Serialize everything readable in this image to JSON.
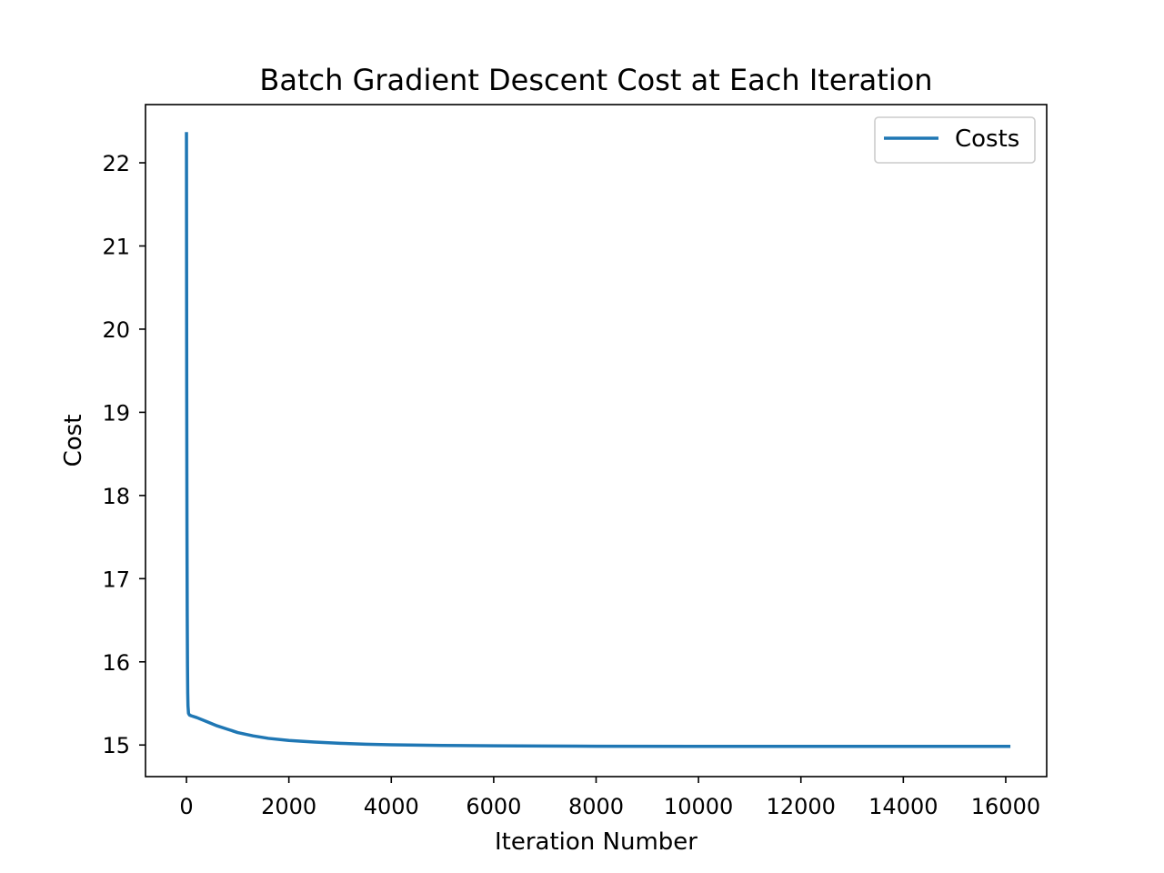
{
  "chart_data": {
    "type": "line",
    "title": "Batch Gradient Descent Cost at Each Iteration",
    "xlabel": "Iteration Number",
    "ylabel": "Cost",
    "xlim": [
      -800,
      16800
    ],
    "ylim": [
      14.62,
      22.7
    ],
    "xticks": [
      0,
      2000,
      4000,
      6000,
      8000,
      10000,
      12000,
      14000,
      16000
    ],
    "yticks": [
      15,
      16,
      17,
      18,
      19,
      20,
      21,
      22
    ],
    "grid": false,
    "legend_position": "upper right",
    "series": [
      {
        "name": "Costs",
        "color": "#1f77b4",
        "x": [
          0,
          2,
          5,
          10,
          15,
          20,
          25,
          30,
          40,
          60,
          100,
          200,
          400,
          600,
          800,
          1000,
          1300,
          1600,
          2000,
          2500,
          3000,
          3500,
          4000,
          5000,
          6000,
          7000,
          8000,
          10000,
          12000,
          14000,
          16000,
          16060
        ],
        "values": [
          22.35,
          21.0,
          19.3,
          17.6,
          16.55,
          15.95,
          15.62,
          15.47,
          15.38,
          15.36,
          15.35,
          15.33,
          15.28,
          15.23,
          15.19,
          15.15,
          15.11,
          15.08,
          15.055,
          15.035,
          15.02,
          15.01,
          15.003,
          14.995,
          14.99,
          14.987,
          14.985,
          14.984,
          14.983,
          14.983,
          14.983,
          14.983
        ]
      }
    ]
  }
}
